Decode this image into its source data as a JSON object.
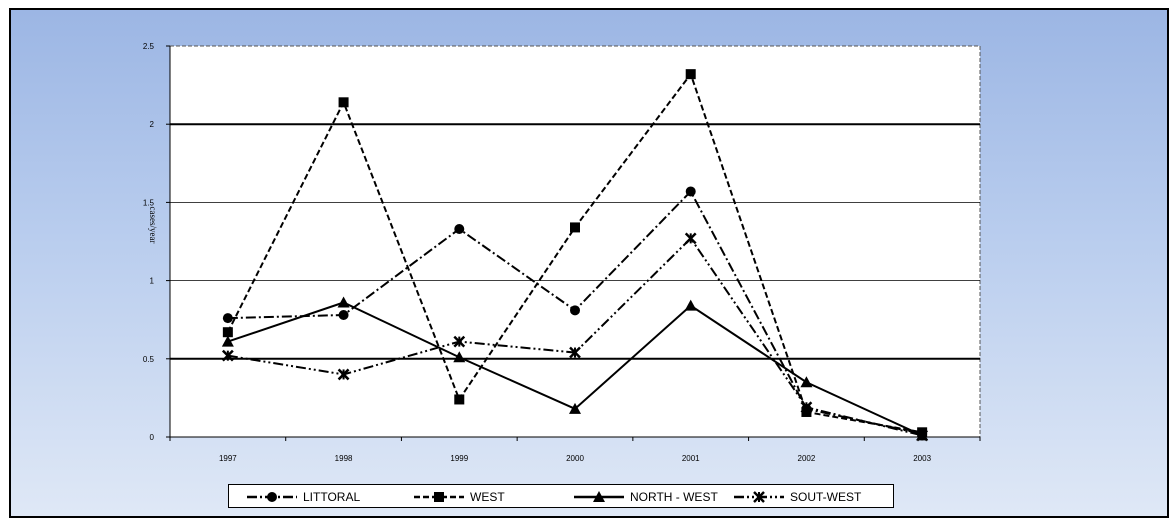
{
  "chart_data": {
    "type": "line",
    "title": "",
    "xlabel": "",
    "ylabel": "cases/year",
    "x": [
      "1997",
      "1998",
      "1999",
      "2000",
      "2001",
      "2002",
      "2003"
    ],
    "ylim": [
      0,
      2.5
    ],
    "yticks": [
      "0",
      "0.5",
      "1",
      "1.5",
      "2",
      "2.5"
    ],
    "grid": true,
    "legend_position": "bottom",
    "series": [
      {
        "name": "LITTORAL",
        "marker": "circle",
        "dash": "dash-dot",
        "color": "#000000",
        "values": [
          0.76,
          0.78,
          1.33,
          0.81,
          1.57,
          0.18,
          0.02
        ]
      },
      {
        "name": "WEST",
        "marker": "square",
        "dash": "dashed",
        "color": "#000000",
        "values": [
          0.67,
          2.14,
          0.24,
          1.34,
          2.32,
          0.16,
          0.03
        ]
      },
      {
        "name": "NORTH - WEST",
        "marker": "triangle",
        "dash": "solid",
        "color": "#000000",
        "values": [
          0.61,
          0.86,
          0.51,
          0.18,
          0.84,
          0.35,
          0.01
        ]
      },
      {
        "name": "SOUT-WEST",
        "marker": "star",
        "dash": "dash-dot-dot",
        "color": "#000000",
        "values": [
          0.52,
          0.4,
          0.61,
          0.54,
          1.27,
          0.19,
          0.01
        ]
      }
    ]
  },
  "colors": {
    "background_top": "#9cb6e4",
    "background_bottom": "#dfe8f6",
    "plot_area": "#ffffff",
    "lines": "#000000"
  }
}
